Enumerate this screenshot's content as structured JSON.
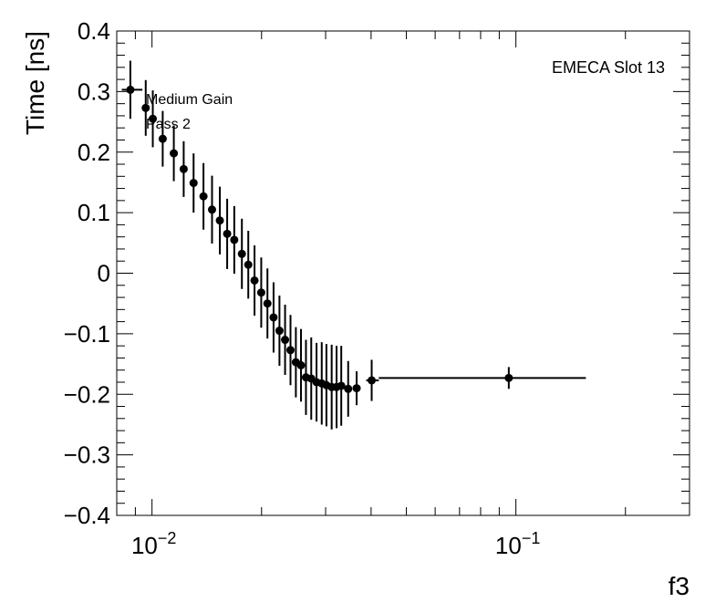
{
  "chart_data": {
    "type": "scatter",
    "xlabel": "f3",
    "ylabel": "Time [ns]",
    "x_scale": "log",
    "xlim": [
      0.008,
      0.3
    ],
    "ylim": [
      -0.4,
      0.4
    ],
    "grid": false,
    "x_ticks": [
      {
        "value": 0.01,
        "mantissa": "10",
        "exponent": "−2"
      },
      {
        "value": 0.1,
        "mantissa": "10",
        "exponent": "−1"
      }
    ],
    "y_ticks": [
      {
        "value": 0.4,
        "label": "0.4"
      },
      {
        "value": 0.3,
        "label": "0.3"
      },
      {
        "value": 0.2,
        "label": "0.2"
      },
      {
        "value": 0.1,
        "label": "0.1"
      },
      {
        "value": 0,
        "label": "0"
      },
      {
        "value": -0.1,
        "label": "−0.1"
      },
      {
        "value": -0.2,
        "label": "−0.2"
      },
      {
        "value": -0.3,
        "label": "−0.3"
      },
      {
        "value": -0.4,
        "label": "−0.4"
      }
    ],
    "annotations": {
      "top_right": "EMECA Slot 13",
      "line1": "Medium Gain",
      "line2": "Pass 2"
    },
    "series": [
      {
        "points": [
          {
            "x": 0.00872,
            "y": 0.303,
            "yerr": 0.048,
            "xlo": 0.00826,
            "xhi": 0.00941
          },
          {
            "x": 0.00961,
            "y": 0.273,
            "yerr": 0.046,
            "xlo": 0.00941,
            "xhi": 0.00981
          },
          {
            "x": 0.01005,
            "y": 0.255,
            "yerr": 0.047,
            "xlo": 0.00983,
            "xhi": 0.01026
          },
          {
            "x": 0.0107,
            "y": 0.222,
            "yerr": 0.046
          },
          {
            "x": 0.01148,
            "y": 0.198,
            "yerr": 0.046
          },
          {
            "x": 0.01222,
            "y": 0.172,
            "yerr": 0.046
          },
          {
            "x": 0.01301,
            "y": 0.149,
            "yerr": 0.049
          },
          {
            "x": 0.01385,
            "y": 0.127,
            "yerr": 0.055
          },
          {
            "x": 0.01462,
            "y": 0.105,
            "yerr": 0.056
          },
          {
            "x": 0.01536,
            "y": 0.087,
            "yerr": 0.056
          },
          {
            "x": 0.01609,
            "y": 0.065,
            "yerr": 0.058
          },
          {
            "x": 0.01683,
            "y": 0.055,
            "yerr": 0.056
          },
          {
            "x": 0.01766,
            "y": 0.032,
            "yerr": 0.058
          },
          {
            "x": 0.01839,
            "y": 0.014,
            "yerr": 0.056
          },
          {
            "x": 0.01913,
            "y": -0.012,
            "yerr": 0.058
          },
          {
            "x": 0.01996,
            "y": -0.032,
            "yerr": 0.058
          },
          {
            "x": 0.02076,
            "y": -0.05,
            "yerr": 0.058
          },
          {
            "x": 0.02158,
            "y": -0.073,
            "yerr": 0.058
          },
          {
            "x": 0.0224,
            "y": -0.095,
            "yerr": 0.058
          },
          {
            "x": 0.02321,
            "y": -0.11,
            "yerr": 0.058
          },
          {
            "x": 0.02402,
            "y": -0.127,
            "yerr": 0.058
          },
          {
            "x": 0.02485,
            "y": -0.147,
            "yerr": 0.058
          },
          {
            "x": 0.02567,
            "y": -0.152,
            "yerr": 0.06
          },
          {
            "x": 0.02649,
            "y": -0.172,
            "yerr": 0.062
          },
          {
            "x": 0.02739,
            "y": -0.174,
            "yerr": 0.068
          },
          {
            "x": 0.02832,
            "y": -0.18,
            "yerr": 0.065
          },
          {
            "x": 0.02927,
            "y": -0.182,
            "yerr": 0.068
          },
          {
            "x": 0.03015,
            "y": -0.185,
            "yerr": 0.068
          },
          {
            "x": 0.03117,
            "y": -0.188,
            "yerr": 0.07
          },
          {
            "x": 0.03215,
            "y": -0.188,
            "yerr": 0.068
          },
          {
            "x": 0.03312,
            "y": -0.186,
            "yerr": 0.066
          },
          {
            "x": 0.0346,
            "y": -0.191,
            "yerr": 0.046
          },
          {
            "x": 0.0365,
            "y": -0.19,
            "yerr": 0.028
          },
          {
            "x": 0.04015,
            "y": -0.177,
            "yerr": 0.034,
            "xlo": 0.03879,
            "xhi": 0.042
          },
          {
            "x": 0.0956,
            "y": -0.173,
            "yerr": 0.018,
            "xlo": 0.042,
            "xhi": 0.1557
          }
        ]
      }
    ]
  }
}
